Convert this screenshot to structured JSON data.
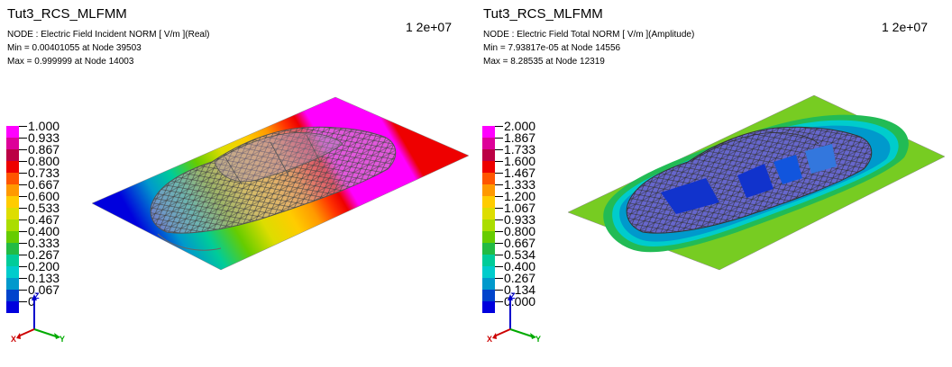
{
  "panels": [
    {
      "title": "Tut3_RCS_MLFMM",
      "line1": "NODE : Electric Field Incident NORM [  V/m  ](Real)",
      "line2": "Min = 0.00401055  at  Node  39503",
      "line3": "Max = 0.999999  at  Node  14003",
      "timestep": "1  2e+07",
      "legend": [
        "1.000",
        "0.933",
        "0.867",
        "0.800",
        "0.733",
        "0.667",
        "0.600",
        "0.533",
        "0.467",
        "0.400",
        "0.333",
        "0.267",
        "0.200",
        "0.133",
        "0.067",
        "0"
      ]
    },
    {
      "title": "Tut3_RCS_MLFMM",
      "line1": "NODE : Electric Field Total NORM [  V/m  ](Amplitude)",
      "line2": "Min = 7.93817e-05  at  Node  14556",
      "line3": "Max = 8.28535  at  Node  12319",
      "timestep": "1  2e+07",
      "legend": [
        "2.000",
        "1.867",
        "1.733",
        "1.600",
        "1.467",
        "1.333",
        "1.200",
        "1.067",
        "0.933",
        "0.800",
        "0.667",
        "0.534",
        "0.400",
        "0.267",
        "0.134",
        "0.000"
      ]
    }
  ],
  "axes": {
    "x": "X",
    "y": "Y",
    "z": "Z"
  },
  "colors": {
    "scale": [
      "#ff00ff",
      "#dd0099",
      "#bb0044",
      "#ee0000",
      "#ff5500",
      "#ff9900",
      "#ffcc00",
      "#dddd00",
      "#aadd00",
      "#66cc00",
      "#22bb44",
      "#00cc99",
      "#00cccc",
      "#0099cc",
      "#0044cc",
      "#0000dd"
    ]
  }
}
